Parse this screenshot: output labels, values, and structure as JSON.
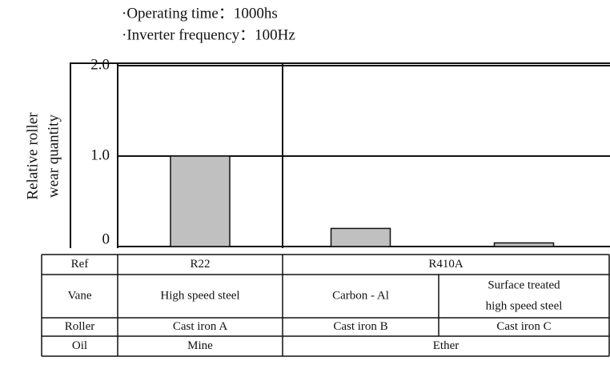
{
  "chart_data": {
    "type": "bar",
    "annotations": [
      "·Operating time：1000hs",
      "·Inverter frequency：100Hz"
    ],
    "ylabel": [
      "Relative roller",
      "wear quantity"
    ],
    "categories": [
      null,
      null,
      null
    ],
    "values": [
      1.0,
      0.2,
      0.04
    ],
    "color": "#c0c0c0",
    "ylim": [
      0,
      2.0
    ],
    "yticks": [
      0,
      {
        "value": 1,
        "label": "1.0"
      },
      {
        "value": 2,
        "label": "2.0"
      }
    ],
    "grid": true,
    "table": {
      "rows": [
        [
          "Ref",
          "R22",
          "R410A"
        ],
        [
          "Vane",
          "High speed steel",
          "Carbon - Al",
          [
            "Surface treated",
            "high speed steel"
          ]
        ],
        [
          "Roller",
          "Cast iron A",
          "Cast iron B",
          "Cast iron C"
        ],
        [
          "Oil",
          "Mine",
          "Ether"
        ]
      ]
    }
  }
}
